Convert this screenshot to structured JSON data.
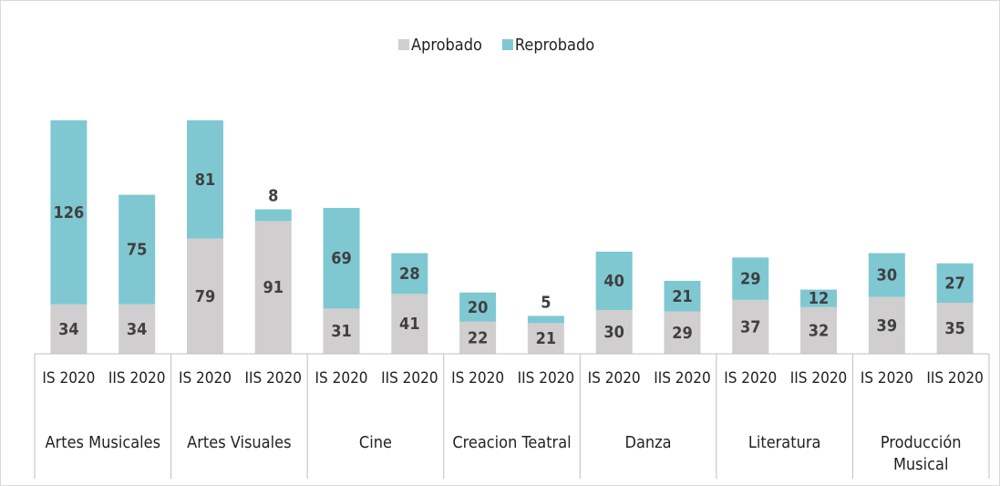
{
  "chart_data": {
    "type": "bar",
    "stacked": true,
    "groups": [
      "Artes Musicales",
      "Artes Visuales",
      "Cine",
      "Creacion Teatral",
      "Danza",
      "Literatura",
      "Producción Musical"
    ],
    "categories": [
      "IS 2020",
      "IIS 2020",
      "IS 2020",
      "IIS 2020",
      "IS 2020",
      "IIS 2020",
      "IS 2020",
      "IIS 2020",
      "IS 2020",
      "IIS 2020",
      "IS 2020",
      "IIS 2020",
      "IS 2020",
      "IIS 2020"
    ],
    "series": [
      {
        "name": "Aprobado",
        "color": "#d0cece",
        "values": [
          34,
          34,
          79,
          91,
          31,
          41,
          22,
          21,
          30,
          29,
          37,
          32,
          39,
          35
        ]
      },
      {
        "name": "Reprobado",
        "color": "#7fc8d2",
        "values": [
          126,
          75,
          81,
          8,
          69,
          28,
          20,
          5,
          40,
          21,
          29,
          12,
          30,
          27
        ]
      }
    ],
    "legend": "top"
  }
}
